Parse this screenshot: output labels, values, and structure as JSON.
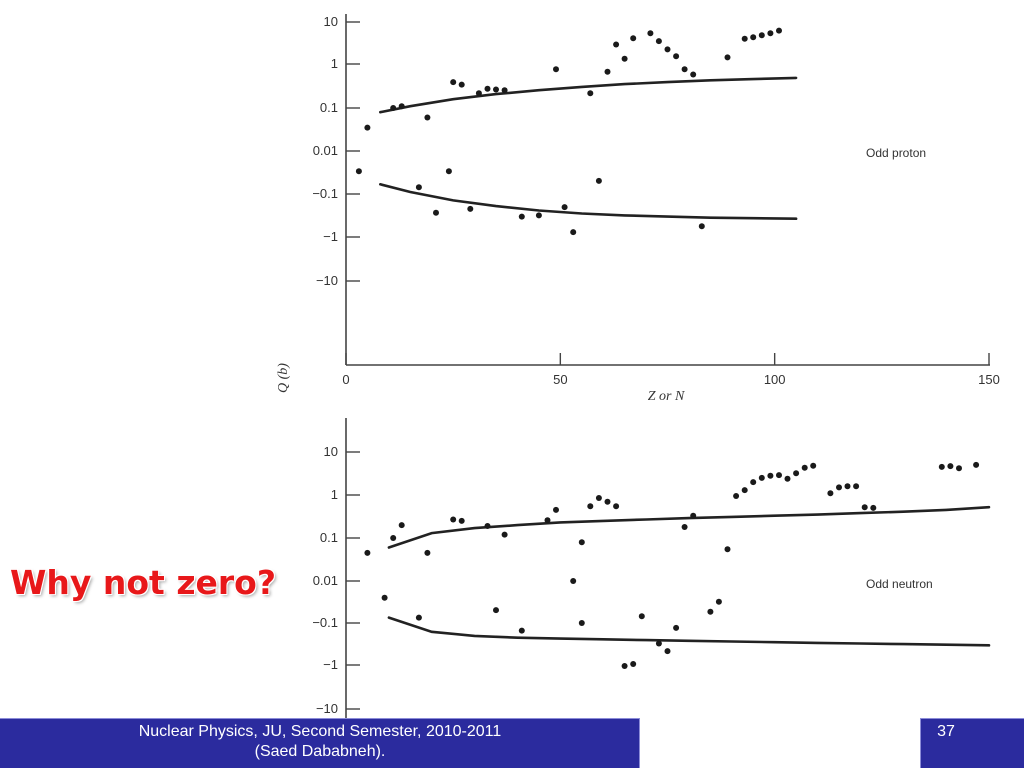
{
  "slide": {
    "callout": "Why not zero?",
    "footer_line1": "Nuclear Physics, JU, Second Semester, 2010-2011",
    "footer_line2": "(Saed Dababneh).",
    "slide_number": "37",
    "colors": {
      "callout": "#e8181a",
      "footer_bg": "#2b2b9e",
      "footer_text": "#ffffff"
    }
  },
  "chart_data": [
    {
      "type": "scatter",
      "annotation": "Odd proton",
      "ylabel": "Q (b)",
      "xlabel": "Z or N",
      "x_ticks": [
        "0",
        "50",
        "100",
        "150"
      ],
      "xlim": [
        0,
        150
      ],
      "y_ticks": [
        "10",
        "1",
        "0.1",
        "0.01",
        "−0.1",
        "−1",
        "−10"
      ],
      "y_scale": "signed-log",
      "points": [
        {
          "x": 3,
          "y": -0.03
        },
        {
          "x": 5,
          "y": 0.035
        },
        {
          "x": 11,
          "y": 0.1
        },
        {
          "x": 13,
          "y": 0.11
        },
        {
          "x": 19,
          "y": 0.06
        },
        {
          "x": 25,
          "y": 0.4
        },
        {
          "x": 27,
          "y": 0.35
        },
        {
          "x": 31,
          "y": 0.22
        },
        {
          "x": 33,
          "y": 0.28
        },
        {
          "x": 35,
          "y": 0.27
        },
        {
          "x": 37,
          "y": 0.26
        },
        {
          "x": 49,
          "y": 0.8
        },
        {
          "x": 57,
          "y": 0.22
        },
        {
          "x": 61,
          "y": 0.7
        },
        {
          "x": 63,
          "y": 3
        },
        {
          "x": 65,
          "y": 1.4
        },
        {
          "x": 67,
          "y": 4.2
        },
        {
          "x": 71,
          "y": 5.5
        },
        {
          "x": 73,
          "y": 3.6
        },
        {
          "x": 75,
          "y": 2.3
        },
        {
          "x": 77,
          "y": 1.6
        },
        {
          "x": 79,
          "y": 0.8
        },
        {
          "x": 81,
          "y": 0.6
        },
        {
          "x": 89,
          "y": 1.5
        },
        {
          "x": 93,
          "y": 4.1
        },
        {
          "x": 95,
          "y": 4.4
        },
        {
          "x": 97,
          "y": 4.9
        },
        {
          "x": 99,
          "y": 5.5
        },
        {
          "x": 101,
          "y": 6.3
        },
        {
          "x": 17,
          "y": -0.07
        },
        {
          "x": 21,
          "y": -0.27
        },
        {
          "x": 24,
          "y": -0.03
        },
        {
          "x": 29,
          "y": -0.22
        },
        {
          "x": 41,
          "y": -0.33
        },
        {
          "x": 45,
          "y": -0.31
        },
        {
          "x": 51,
          "y": -0.2
        },
        {
          "x": 53,
          "y": -0.75
        },
        {
          "x": 59,
          "y": -0.05
        },
        {
          "x": 83,
          "y": -0.55
        }
      ],
      "curves": [
        {
          "x": [
            8,
            15,
            25,
            35,
            45,
            55,
            65,
            75,
            85,
            95,
            105
          ],
          "y": [
            0.08,
            0.11,
            0.16,
            0.21,
            0.26,
            0.31,
            0.36,
            0.4,
            0.44,
            0.47,
            0.5
          ]
        },
        {
          "x": [
            8,
            15,
            25,
            35,
            45,
            55,
            65,
            75,
            85,
            95,
            105
          ],
          "y": [
            -0.06,
            -0.09,
            -0.14,
            -0.19,
            -0.24,
            -0.28,
            -0.31,
            -0.33,
            -0.35,
            -0.36,
            -0.37
          ]
        }
      ]
    },
    {
      "type": "scatter",
      "annotation": "Odd neutron",
      "ylabel": "",
      "xlabel": "",
      "y_ticks": [
        "10",
        "1",
        "0.1",
        "0.01",
        "−0.1",
        "−1",
        "−10"
      ],
      "y_scale": "signed-log",
      "xlim": [
        0,
        150
      ],
      "points": [
        {
          "x": 5,
          "y": 0.045
        },
        {
          "x": 9,
          "y": -0.026
        },
        {
          "x": 11,
          "y": 0.1
        },
        {
          "x": 13,
          "y": 0.2
        },
        {
          "x": 17,
          "y": -0.075
        },
        {
          "x": 19,
          "y": 0.045
        },
        {
          "x": 25,
          "y": 0.27
        },
        {
          "x": 27,
          "y": 0.25
        },
        {
          "x": 33,
          "y": 0.19
        },
        {
          "x": 35,
          "y": -0.05
        },
        {
          "x": 37,
          "y": 0.12
        },
        {
          "x": 41,
          "y": -0.15
        },
        {
          "x": 47,
          "y": 0.26
        },
        {
          "x": 49,
          "y": 0.45
        },
        {
          "x": 53,
          "y": 0.01
        },
        {
          "x": 55,
          "y": -0.1
        },
        {
          "x": 55,
          "y": 0.08
        },
        {
          "x": 57,
          "y": 0.55
        },
        {
          "x": 59,
          "y": 0.85
        },
        {
          "x": 61,
          "y": 0.7
        },
        {
          "x": 63,
          "y": 0.55
        },
        {
          "x": 65,
          "y": -1
        },
        {
          "x": 67,
          "y": -0.9
        },
        {
          "x": 69,
          "y": -0.07
        },
        {
          "x": 73,
          "y": -0.3
        },
        {
          "x": 75,
          "y": -0.45
        },
        {
          "x": 77,
          "y": -0.13
        },
        {
          "x": 79,
          "y": 0.18
        },
        {
          "x": 81,
          "y": 0.33
        },
        {
          "x": 85,
          "y": -0.055
        },
        {
          "x": 87,
          "y": -0.032
        },
        {
          "x": 89,
          "y": 0.055
        },
        {
          "x": 91,
          "y": 0.95
        },
        {
          "x": 93,
          "y": 1.3
        },
        {
          "x": 95,
          "y": 2
        },
        {
          "x": 97,
          "y": 2.5
        },
        {
          "x": 99,
          "y": 2.8
        },
        {
          "x": 101,
          "y": 2.9
        },
        {
          "x": 103,
          "y": 2.4
        },
        {
          "x": 105,
          "y": 3.2
        },
        {
          "x": 107,
          "y": 4.3
        },
        {
          "x": 109,
          "y": 4.8
        },
        {
          "x": 113,
          "y": 1.1
        },
        {
          "x": 115,
          "y": 1.5
        },
        {
          "x": 117,
          "y": 1.6
        },
        {
          "x": 119,
          "y": 1.6
        },
        {
          "x": 121,
          "y": 0.52
        },
        {
          "x": 123,
          "y": 0.5
        },
        {
          "x": 139,
          "y": 4.5
        },
        {
          "x": 141,
          "y": 4.7
        },
        {
          "x": 143,
          "y": 4.2
        },
        {
          "x": 147,
          "y": 5
        }
      ],
      "curves": [
        {
          "x": [
            10,
            20,
            30,
            40,
            50,
            60,
            70,
            80,
            90,
            100,
            110,
            120,
            130,
            140,
            150
          ],
          "y": [
            0.06,
            0.13,
            0.17,
            0.2,
            0.23,
            0.25,
            0.27,
            0.29,
            0.31,
            0.33,
            0.35,
            0.38,
            0.41,
            0.45,
            0.52
          ]
        },
        {
          "x": [
            10,
            20,
            30,
            40,
            50,
            60,
            70,
            80,
            90,
            100,
            110,
            120,
            130,
            140,
            150
          ],
          "y": [
            -0.075,
            -0.16,
            -0.2,
            -0.22,
            -0.23,
            -0.24,
            -0.25,
            -0.26,
            -0.27,
            -0.28,
            -0.29,
            -0.3,
            -0.31,
            -0.32,
            -0.33
          ]
        }
      ]
    }
  ]
}
